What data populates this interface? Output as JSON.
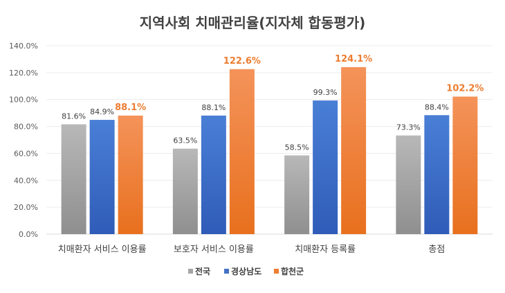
{
  "chart_data": {
    "type": "bar",
    "title": "지역사회 치매관리율(지자체 합동평가)",
    "categories": [
      "치매환자 서비스 이용률",
      "보호자 서비스 이용률",
      "치매환자 등록률",
      "총점"
    ],
    "series": [
      {
        "name": "전국",
        "values": [
          81.6,
          63.5,
          58.5,
          73.3
        ],
        "labels": [
          "81.6%",
          "63.5%",
          "58.5%",
          "73.3%"
        ],
        "color": "#A5A5A5"
      },
      {
        "name": "경상남도",
        "values": [
          84.9,
          88.1,
          99.3,
          88.4
        ],
        "labels": [
          "84.9%",
          "88.1%",
          "99.3%",
          "88.4%"
        ],
        "color": "#4472C4"
      },
      {
        "name": "합천군",
        "values": [
          88.1,
          122.6,
          124.1,
          102.2
        ],
        "labels": [
          "88.1%",
          "122.6%",
          "124.1%",
          "102.2%"
        ],
        "color": "#ED7D31"
      }
    ],
    "ylim": [
      0,
      140
    ],
    "yticks": [
      "0.0%",
      "20.0%",
      "40.0%",
      "60.0%",
      "80.0%",
      "100.0%",
      "120.0%",
      "140.0%"
    ],
    "grid": true,
    "legend": "bottom"
  }
}
